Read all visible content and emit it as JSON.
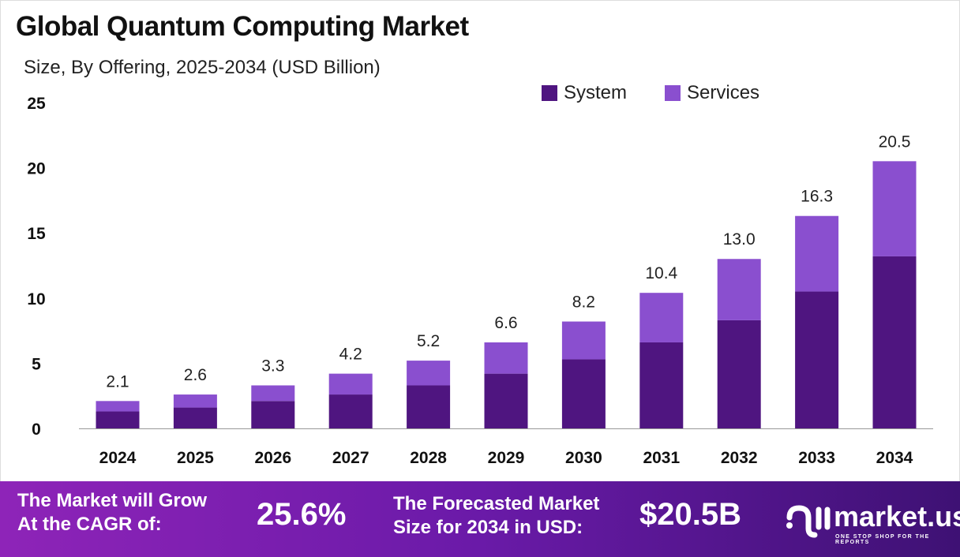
{
  "chart_data": {
    "type": "bar",
    "stacked": true,
    "title": "Global Quantum Computing Market",
    "subtitle": "Size, By Offering, 2025-2034 (USD Billion)",
    "xlabel": "",
    "ylabel": "",
    "ylim": [
      0,
      25
    ],
    "yticks": [
      0,
      5,
      10,
      15,
      20,
      25
    ],
    "categories": [
      "2024",
      "2025",
      "2026",
      "2027",
      "2028",
      "2029",
      "2030",
      "2031",
      "2032",
      "2033",
      "2034"
    ],
    "series": [
      {
        "name": "System",
        "color": "#4f1580",
        "values": [
          1.3,
          1.6,
          2.1,
          2.6,
          3.3,
          4.2,
          5.3,
          6.6,
          8.3,
          10.5,
          13.2
        ]
      },
      {
        "name": "Services",
        "color": "#8a4fcf",
        "values": [
          0.8,
          1.0,
          1.2,
          1.6,
          1.9,
          2.4,
          2.9,
          3.8,
          4.7,
          5.8,
          7.3
        ]
      }
    ],
    "totals": [
      "2.1",
      "2.6",
      "3.3",
      "4.2",
      "5.2",
      "6.6",
      "8.2",
      "10.4",
      "13.0",
      "16.3",
      "20.5"
    ],
    "legend_position": "top-right",
    "grid": false
  },
  "banner": {
    "cagr_label_1": "The Market will Grow",
    "cagr_label_2": "At the CAGR of:",
    "cagr_value": "25.6%",
    "forecast_label_1": "The Forecasted Market",
    "forecast_label_2": "Size for 2034 in USD:",
    "forecast_value": "$20.5B",
    "logo_name": "market.us",
    "logo_tagline": "ONE STOP SHOP FOR THE REPORTS"
  }
}
